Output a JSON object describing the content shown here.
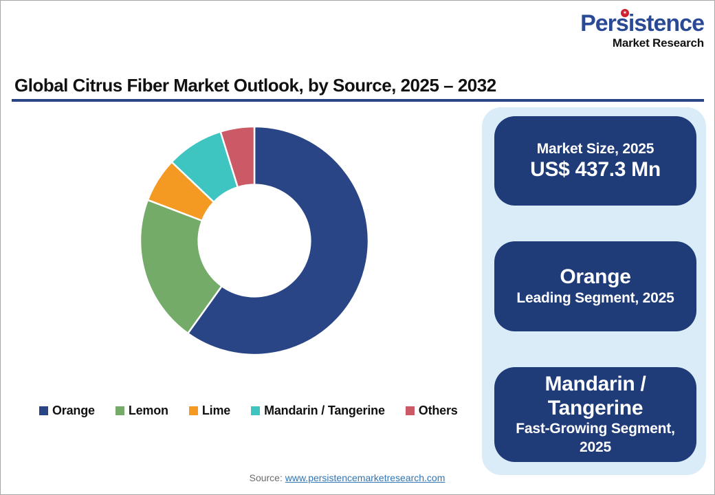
{
  "brand": {
    "name": "Persistence",
    "tagline": "Market Research",
    "badge_icon": "star-icon",
    "badge_glyph": "✶",
    "colors": {
      "blue": "#2a4a96",
      "red": "#cf2030",
      "black": "#111111"
    }
  },
  "title": {
    "text": "Global Citrus Fiber Market Outlook, by Source, 2025 – 2032",
    "rule_color": "#2a4586"
  },
  "chart_data": {
    "type": "pie",
    "subtype": "donut",
    "title": "Global Citrus Fiber Market Outlook, by Source, 2025 – 2032",
    "categories": [
      "Orange",
      "Lemon",
      "Lime",
      "Mandarin / Tangerine",
      "Others"
    ],
    "values": [
      59.9,
      20.9,
      6.3,
      8.1,
      4.8
    ],
    "values_unit": "percent-share (estimated from arc angles, no data labels shown)",
    "colors": [
      "#2a4586",
      "#74ab68",
      "#f49a23",
      "#3ec4c1",
      "#cb5a66"
    ],
    "start_angle_deg": 0,
    "direction": "clockwise",
    "inner_radius_ratio": 0.49,
    "separator_color": "#ffffff",
    "legend_position": "bottom"
  },
  "panel": {
    "bg_color": "#d9ecf8",
    "card_color": "#1f3c78",
    "cards": [
      {
        "label": "Market Size, 2025",
        "value": "US$ 437.3 Mn"
      },
      {
        "value": "Orange",
        "label": "Leading Segment, 2025"
      },
      {
        "value": "Mandarin / Tangerine",
        "label": "Fast-Growing Segment, 2025"
      }
    ]
  },
  "source": {
    "prefix": "Source: ",
    "link_text": "www.persistencemarketresearch.com"
  }
}
